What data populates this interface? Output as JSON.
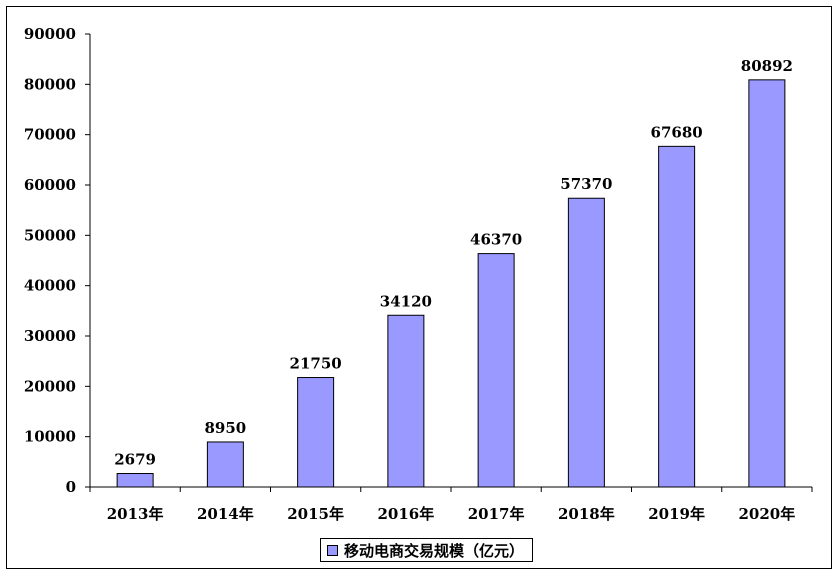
{
  "chart_data": {
    "type": "bar",
    "title": "",
    "xlabel": "",
    "ylabel": "",
    "categories": [
      "2013年",
      "2014年",
      "2015年",
      "2016年",
      "2017年",
      "2018年",
      "2019年",
      "2020年"
    ],
    "series": [
      {
        "name": "移动电商交易规模（亿元）",
        "values": [
          2679,
          8950,
          21750,
          34120,
          46370,
          57370,
          67680,
          80892
        ]
      }
    ],
    "value_labels": [
      "2679",
      "8950",
      "21750",
      "34120",
      "46370",
      "57370",
      "67680",
      "80892"
    ],
    "ylim": [
      0,
      90000
    ],
    "yticks": [
      "0",
      "10000",
      "20000",
      "30000",
      "40000",
      "50000",
      "60000",
      "70000",
      "80000",
      "90000"
    ],
    "grid": false,
    "legend_position": "bottom-center",
    "colors": {
      "bar_fill": "#9999ff",
      "bar_stroke": "#000000",
      "axis": "#000000"
    }
  }
}
